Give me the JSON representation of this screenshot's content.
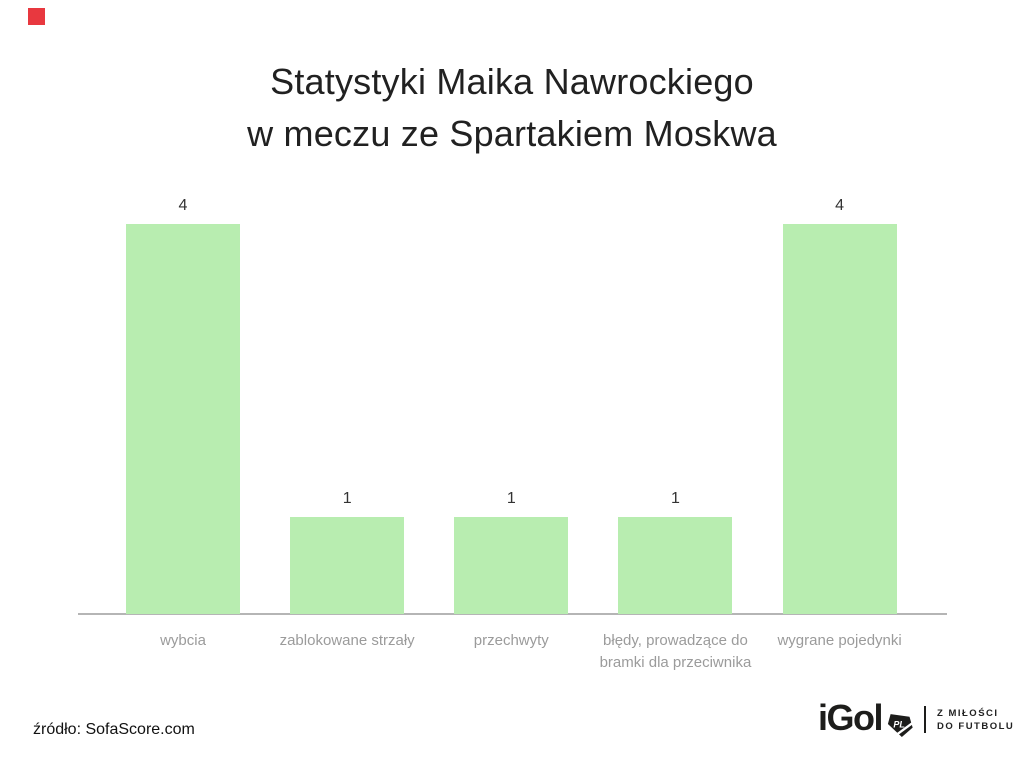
{
  "title": {
    "line1": "Statystyki Maika Nawrockiego",
    "line2": "w meczu ze Spartakiem Moskwa"
  },
  "chart_data": {
    "type": "bar",
    "title": "Statystyki Maika Nawrockiego w meczu ze Spartakiem Moskwa",
    "categories": [
      "wybcia",
      "zablokowane strzały",
      "przechwyty",
      "błędy, prowadzące do bramki dla przeciwnika",
      "wygrane pojedynki"
    ],
    "values": [
      4,
      1,
      1,
      1,
      4
    ],
    "value_labels": [
      "4",
      "1",
      "1",
      "1",
      "4"
    ],
    "xlabel": "",
    "ylabel": "",
    "ylim": [
      0,
      4.3
    ],
    "grid": false,
    "legend": false,
    "y_axis_visible": false,
    "bar_color": "#b8edb0",
    "axis_line_color": "#b5b5b5",
    "value_label_color": "#333333",
    "category_label_color": "#9b9b9b"
  },
  "source": {
    "text": "źródło: SofaScore.com"
  },
  "logo": {
    "wordmark": "iGol",
    "badge": "PL",
    "tagline_line1": "Z MIŁOŚCI",
    "tagline_line2": "DO FUTBOLU"
  },
  "decor": {
    "red_square_color": "#e8383f"
  }
}
